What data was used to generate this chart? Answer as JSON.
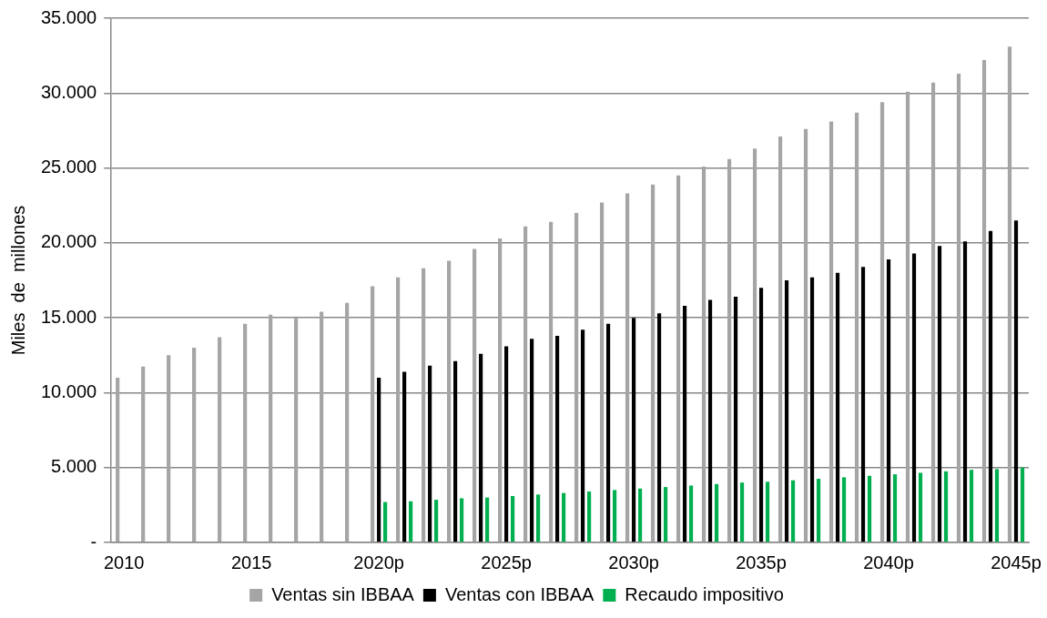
{
  "chart_data": {
    "type": "bar",
    "ylabel": "Miles  de  millones",
    "categories": [
      "2010",
      null,
      null,
      null,
      null,
      "2015",
      null,
      null,
      null,
      null,
      "2020p",
      null,
      null,
      null,
      null,
      "2025p",
      null,
      null,
      null,
      null,
      "2030p",
      null,
      null,
      null,
      null,
      "2035p",
      null,
      null,
      null,
      null,
      "2040p",
      null,
      null,
      null,
      null,
      "2045p"
    ],
    "series": [
      {
        "name": "Ventas sin IBBAA",
        "color": "#a5a5a5",
        "values": [
          11000,
          11750,
          12500,
          13000,
          13700,
          14600,
          15200,
          15000,
          15400,
          16000,
          17100,
          17700,
          18300,
          18800,
          19600,
          20300,
          21100,
          21400,
          22000,
          22700,
          23300,
          23900,
          24500,
          25100,
          25600,
          26300,
          27100,
          27600,
          28100,
          28700,
          29400,
          30100,
          30700,
          31300,
          32200,
          33100
        ]
      },
      {
        "name": "Ventas con IBBAA",
        "color": "#000000",
        "values": [
          null,
          null,
          null,
          null,
          null,
          null,
          null,
          null,
          null,
          null,
          11000,
          11400,
          11800,
          12100,
          12600,
          13100,
          13600,
          13800,
          14200,
          14600,
          15000,
          15300,
          15800,
          16200,
          16400,
          17000,
          17500,
          17700,
          18000,
          18400,
          18900,
          19300,
          19800,
          20100,
          20800,
          21500
        ]
      },
      {
        "name": "Recaudo impositivo",
        "color": "#00b050",
        "values": [
          null,
          null,
          null,
          null,
          null,
          null,
          null,
          null,
          null,
          null,
          2700,
          2750,
          2850,
          2950,
          3000,
          3100,
          3200,
          3300,
          3400,
          3500,
          3600,
          3700,
          3800,
          3900,
          4000,
          4050,
          4150,
          4250,
          4350,
          4450,
          4550,
          4650,
          4750,
          4850,
          4900,
          5000
        ]
      }
    ],
    "ylim": [
      0,
      35000
    ],
    "yticks": [
      {
        "value": 0,
        "label": "-"
      },
      {
        "value": 5000,
        "label": "5.000"
      },
      {
        "value": 10000,
        "label": "10.000"
      },
      {
        "value": 15000,
        "label": "15.000"
      },
      {
        "value": 20000,
        "label": "20.000"
      },
      {
        "value": 25000,
        "label": "25.000"
      },
      {
        "value": 30000,
        "label": "30.000"
      },
      {
        "value": 35000,
        "label": "35.000"
      }
    ],
    "grid": "y",
    "legend": "bottom"
  }
}
